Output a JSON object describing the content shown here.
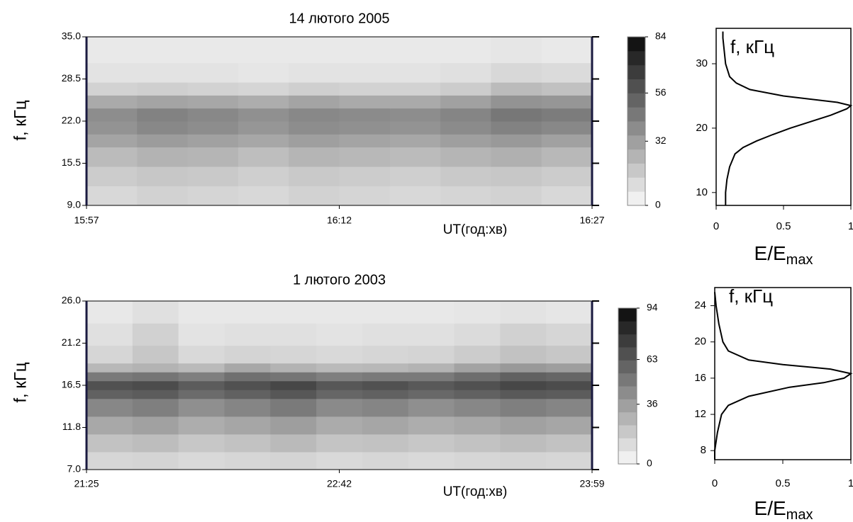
{
  "chart_data": [
    {
      "type": "heatmap",
      "title": "14 лютого 2005",
      "xlabel": "UT(год:хв)",
      "ylabel": "f, кГц",
      "xlim": [
        0,
        30
      ],
      "xticks": [
        {
          "value": 0,
          "label": "15:57"
        },
        {
          "value": 15,
          "label": "16:12"
        },
        {
          "value": 30,
          "label": "16:27"
        }
      ],
      "ylim": [
        9,
        35
      ],
      "yticks": [
        {
          "value": 9,
          "label": "9.0"
        },
        {
          "value": 15.5,
          "label": "15.5"
        },
        {
          "value": 22,
          "label": "22.0"
        },
        {
          "value": 28.5,
          "label": "28.5"
        },
        {
          "value": 35,
          "label": "35.0"
        }
      ],
      "xbins": [
        0,
        3,
        6,
        9,
        12,
        15,
        18,
        21,
        24,
        27,
        30
      ],
      "ybins": [
        9,
        12,
        15,
        18,
        20,
        22,
        24,
        26,
        28,
        31,
        35
      ],
      "z": [
        [
          12,
          14,
          13,
          12,
          14,
          13,
          12,
          13,
          14,
          12
        ],
        [
          16,
          18,
          17,
          15,
          17,
          16,
          15,
          17,
          18,
          16
        ],
        [
          22,
          25,
          24,
          21,
          24,
          23,
          22,
          24,
          26,
          23
        ],
        [
          30,
          33,
          31,
          29,
          32,
          30,
          29,
          32,
          34,
          31
        ],
        [
          36,
          40,
          38,
          35,
          38,
          37,
          36,
          39,
          42,
          40
        ],
        [
          38,
          42,
          40,
          37,
          40,
          39,
          38,
          41,
          46,
          44
        ],
        [
          28,
          30,
          29,
          27,
          30,
          28,
          28,
          31,
          36,
          35
        ],
        [
          14,
          15,
          14,
          13,
          15,
          14,
          14,
          16,
          22,
          20
        ],
        [
          8,
          8,
          8,
          7,
          8,
          8,
          8,
          9,
          12,
          11
        ],
        [
          6,
          6,
          6,
          6,
          6,
          6,
          6,
          6,
          7,
          6
        ]
      ],
      "zlim": [
        0,
        84
      ],
      "zticks": [
        0,
        32,
        56,
        84
      ],
      "levels": 12
    },
    {
      "type": "line",
      "ylabel": "f, кГц",
      "xlabel": "E/E",
      "xlabel_sub": "max",
      "color": "#000000",
      "xlim": [
        0,
        1
      ],
      "xticks": [
        0,
        0.5,
        1
      ],
      "ylim": [
        8,
        35.5
      ],
      "yticks": [
        10,
        20,
        30
      ],
      "x": [
        0.07,
        0.07,
        0.08,
        0.1,
        0.14,
        0.2,
        0.3,
        0.42,
        0.55,
        0.7,
        0.85,
        0.97,
        1.0,
        0.9,
        0.5,
        0.25,
        0.15,
        0.1,
        0.07,
        0.06,
        0.05,
        0.05
      ],
      "y": [
        8,
        10,
        12,
        14,
        16,
        17,
        18,
        19,
        20,
        21,
        22,
        23,
        23.5,
        24,
        25,
        26,
        27,
        28,
        30,
        32,
        34,
        35
      ]
    },
    {
      "type": "heatmap",
      "title": "1 лютого 2003",
      "xlabel": "UT(год:хв)",
      "ylabel": "f, кГц",
      "xlim": [
        0,
        154
      ],
      "xticks": [
        {
          "value": 0,
          "label": "21:25"
        },
        {
          "value": 77,
          "label": "22:42"
        },
        {
          "value": 154,
          "label": "23:59"
        }
      ],
      "ylim": [
        7,
        26
      ],
      "yticks": [
        {
          "value": 7,
          "label": "7.0"
        },
        {
          "value": 11.75,
          "label": "11.8"
        },
        {
          "value": 16.5,
          "label": "16.5"
        },
        {
          "value": 21.25,
          "label": "21.2"
        },
        {
          "value": 26,
          "label": "26.0"
        }
      ],
      "xbins": [
        0,
        14,
        28,
        42,
        56,
        70,
        84,
        98,
        112,
        126,
        140,
        154
      ],
      "ybins": [
        7,
        9,
        11,
        13,
        15,
        16,
        17,
        18,
        19,
        21,
        23.5,
        26
      ],
      "z": [
        [
          14,
          15,
          13,
          14,
          15,
          13,
          14,
          13,
          14,
          15,
          14
        ],
        [
          22,
          24,
          20,
          22,
          25,
          21,
          22,
          20,
          22,
          24,
          22
        ],
        [
          32,
          35,
          30,
          33,
          36,
          31,
          33,
          30,
          32,
          35,
          33
        ],
        [
          45,
          48,
          42,
          46,
          50,
          44,
          46,
          42,
          45,
          48,
          46
        ],
        [
          60,
          62,
          56,
          60,
          64,
          58,
          60,
          57,
          60,
          63,
          62
        ],
        [
          66,
          68,
          62,
          66,
          70,
          64,
          66,
          63,
          66,
          70,
          68
        ],
        [
          50,
          52,
          48,
          54,
          52,
          48,
          50,
          50,
          55,
          60,
          58
        ],
        [
          26,
          28,
          25,
          32,
          28,
          25,
          26,
          28,
          34,
          38,
          36
        ],
        [
          14,
          20,
          13,
          15,
          14,
          13,
          14,
          15,
          18,
          22,
          20
        ],
        [
          10,
          16,
          9,
          10,
          10,
          9,
          10,
          10,
          12,
          16,
          14
        ],
        [
          7,
          10,
          7,
          7,
          7,
          7,
          7,
          7,
          8,
          9,
          8
        ]
      ],
      "zlim": [
        0,
        94
      ],
      "zticks": [
        0,
        36,
        63,
        94
      ],
      "levels": 12
    },
    {
      "type": "line",
      "ylabel": "f, кГц",
      "xlabel": "E/E",
      "xlabel_sub": "max",
      "color": "#000000",
      "xlim": [
        0,
        1
      ],
      "xticks": [
        0,
        0.5,
        1
      ],
      "ylim": [
        7,
        26
      ],
      "yticks": [
        8,
        12,
        16,
        20,
        24
      ],
      "x": [
        0.0,
        0.0,
        0.02,
        0.05,
        0.1,
        0.25,
        0.55,
        0.8,
        0.95,
        1.0,
        0.85,
        0.5,
        0.25,
        0.1,
        0.06,
        0.03,
        0.01,
        0.0
      ],
      "y": [
        7,
        8,
        10,
        12,
        13,
        14,
        15,
        15.5,
        16,
        16.5,
        17,
        17.5,
        18,
        19,
        20,
        22,
        24,
        25.5
      ]
    }
  ]
}
